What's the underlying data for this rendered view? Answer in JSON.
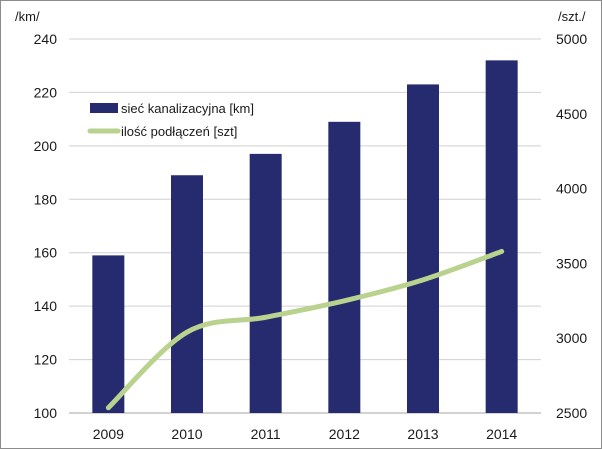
{
  "chart_data": {
    "type": "bar+line",
    "title": "",
    "categories": [
      "2009",
      "2010",
      "2011",
      "2012",
      "2013",
      "2014"
    ],
    "y_left": {
      "unit_label": "/km/",
      "range": [
        100,
        240
      ],
      "ticks": [
        100,
        120,
        140,
        160,
        180,
        200,
        220,
        240
      ],
      "tick_labels": [
        "100",
        "120",
        "140",
        "160",
        "180",
        "200",
        "220",
        "240"
      ]
    },
    "y_right": {
      "unit_label": "/szt./",
      "range": [
        2500,
        5000
      ],
      "ticks": [
        2500,
        3000,
        3500,
        4000,
        4500,
        5000
      ],
      "tick_labels": [
        "2500",
        "3000",
        "3500",
        "4000",
        "4500",
        "5000"
      ]
    },
    "series": [
      {
        "name": "sieć kanalizacyjna [km]",
        "type": "bar",
        "axis": "left",
        "color": "#262a6e",
        "values": [
          159,
          189,
          197,
          209,
          223,
          232
        ]
      },
      {
        "name": "ilość podłączeń [szt]",
        "type": "line",
        "axis": "right",
        "color": "#b9d28e",
        "values": [
          2535,
          3040,
          3140,
          3250,
          3390,
          3580
        ]
      }
    ],
    "grid": true,
    "legend_position": "top-left"
  }
}
